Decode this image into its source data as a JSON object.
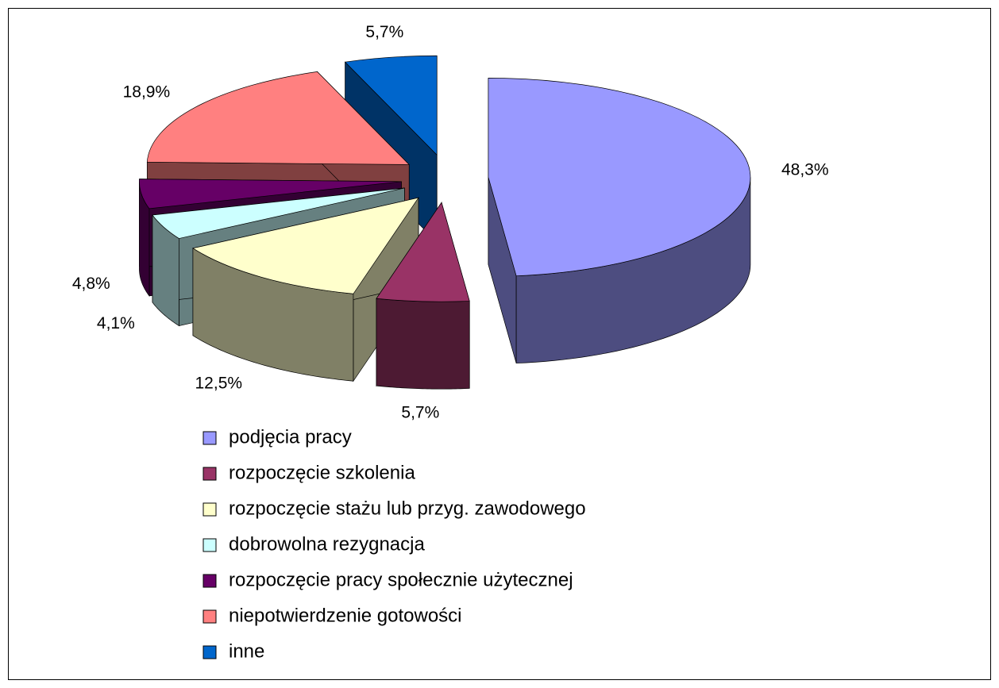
{
  "chart_data": {
    "type": "pie3d",
    "categories": [
      "podjęcia pracy",
      "rozpoczęcie szkolenia",
      "rozpoczęcie stażu lub przyg. zawodowego",
      "dobrowolna rezygnacja",
      "rozpoczęcie pracy społecznie użytecznej",
      "niepotwierdzenie gotowości",
      "inne"
    ],
    "values": [
      48.3,
      5.7,
      12.5,
      4.1,
      4.8,
      18.9,
      5.7
    ],
    "value_labels": [
      "48,3%",
      "5,7%",
      "12,5%",
      "4,1%",
      "4,8%",
      "18,9%",
      "5,7%"
    ],
    "colors": [
      "#9999ff",
      "#993366",
      "#ffffcc",
      "#ccffff",
      "#660066",
      "#ff8080",
      "#0066cc"
    ],
    "legend": "bottom"
  }
}
